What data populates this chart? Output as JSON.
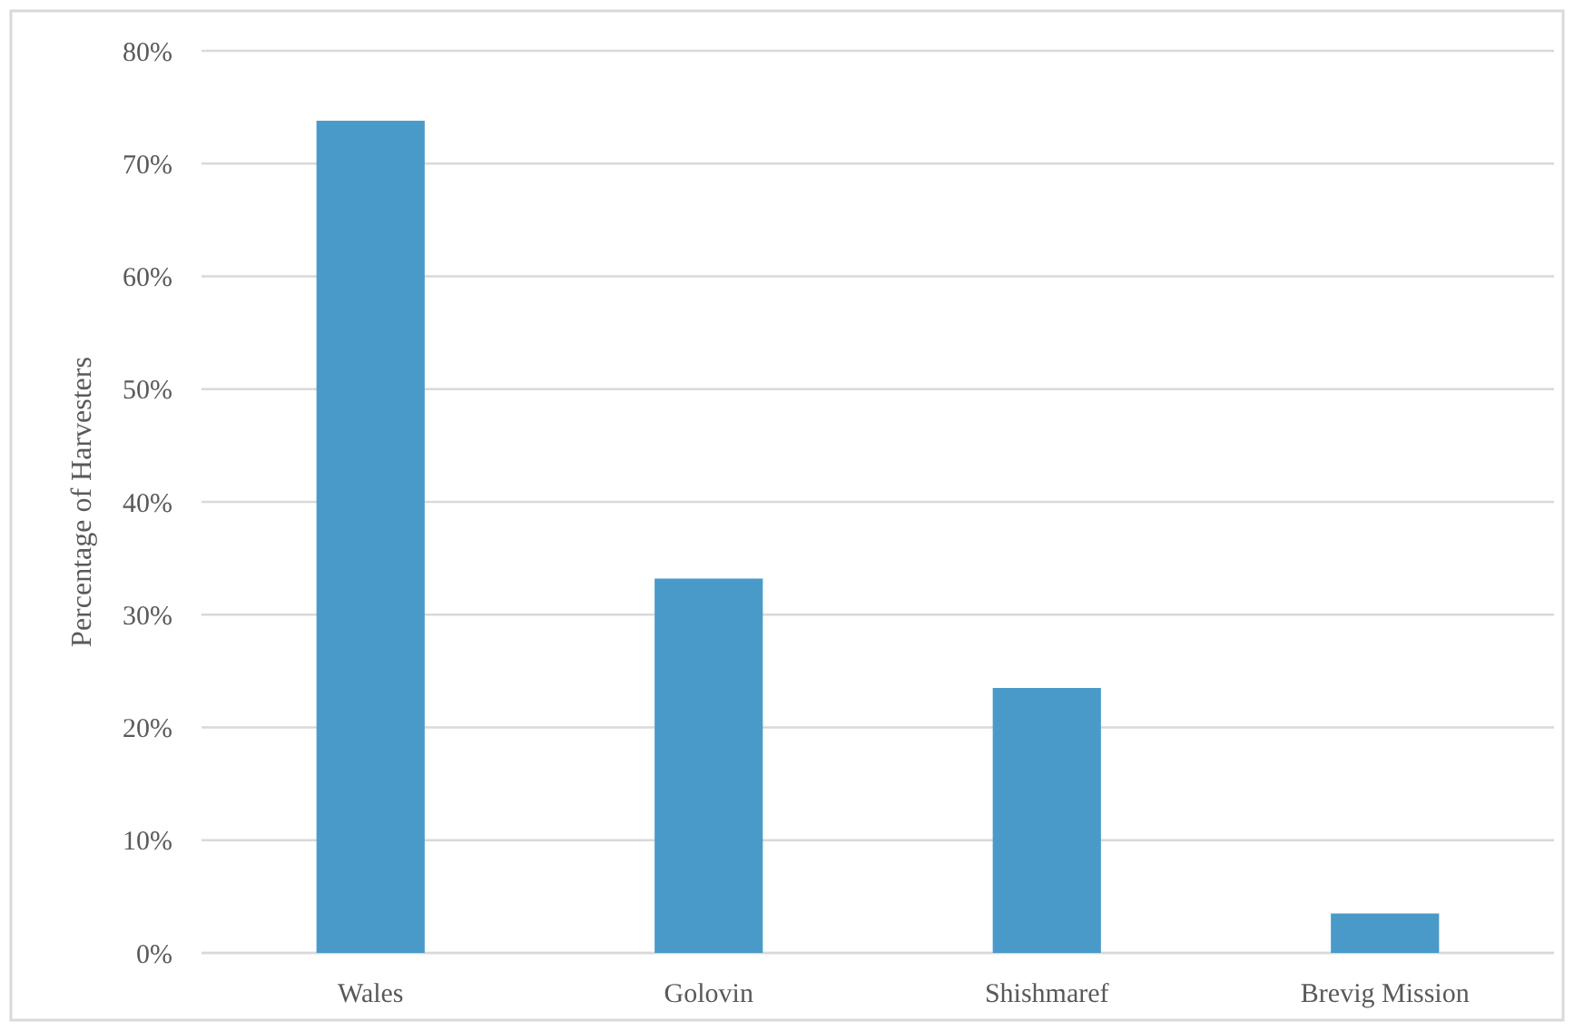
{
  "chart_data": {
    "type": "bar",
    "ylabel": "Percentage of Harvesters",
    "categories": [
      "Wales",
      "Golovin",
      "Shishmaref",
      "Brevig Mission"
    ],
    "values": [
      73.8,
      33.2,
      23.5,
      3.5
    ],
    "color": "#4a9ac9",
    "ylim": [
      0,
      80
    ],
    "yticks": [
      {
        "value": 0,
        "label": "0%"
      },
      {
        "value": 10,
        "label": "10%"
      },
      {
        "value": 20,
        "label": "20%"
      },
      {
        "value": 30,
        "label": "30%"
      },
      {
        "value": 40,
        "label": "40%"
      },
      {
        "value": 50,
        "label": "50%"
      },
      {
        "value": 60,
        "label": "60%"
      },
      {
        "value": 70,
        "label": "70%"
      },
      {
        "value": 80,
        "label": "80%"
      }
    ],
    "grid": "y"
  }
}
